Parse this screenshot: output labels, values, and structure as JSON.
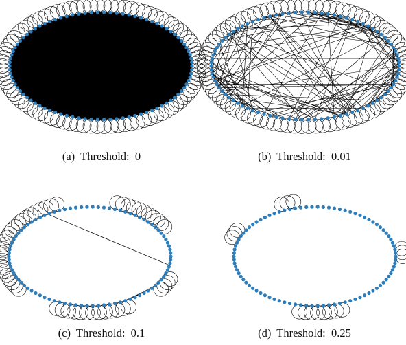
{
  "colors": {
    "node": "#2e7dbb",
    "edge": "#000000",
    "fill_dense": "#000000"
  },
  "panels": [
    {
      "id": "a",
      "caption": "(a)  Threshold:  0",
      "style": "dense",
      "node_count": 90
    },
    {
      "id": "b",
      "caption": "(b)  Threshold:  0.01",
      "style": "sparse",
      "node_count": 90
    },
    {
      "id": "c",
      "caption": "(c)  Threshold:  0.1",
      "style": "few",
      "node_count": 90
    },
    {
      "id": "d",
      "caption": "(d)  Threshold:  0.25",
      "style": "loops",
      "node_count": 90
    }
  ]
}
